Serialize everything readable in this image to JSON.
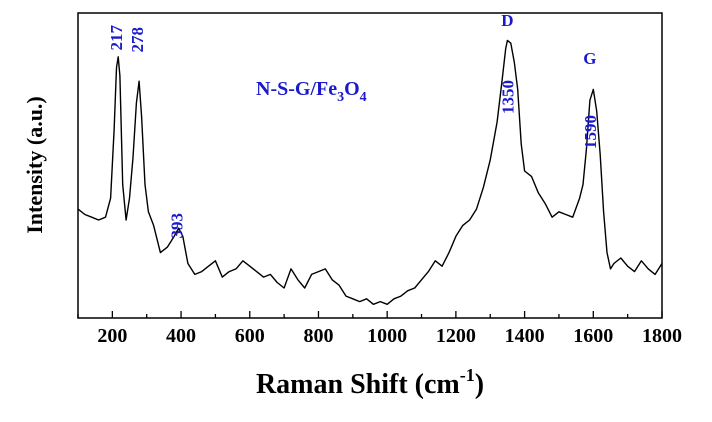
{
  "chart_data": {
    "type": "line",
    "title": "",
    "xlabel": "Raman Shift (cm",
    "xlabel_sup": "-1",
    "xlabel_close": ")",
    "ylabel": "Intensity (a.u.)",
    "xlim": [
      100,
      1800
    ],
    "ylim": [
      0,
      1
    ],
    "x_ticks": [
      200,
      400,
      600,
      800,
      1000,
      1200,
      1400,
      1600,
      1800
    ],
    "x_tick_labels": [
      "200",
      "400",
      "600",
      "800",
      "1000",
      "1200",
      "1400",
      "1600",
      "1800"
    ],
    "y_ticks_shown": false,
    "grid": false,
    "legend": "none",
    "line_color": "#000000",
    "annotation_color": "#1a1acc",
    "sample_label": {
      "parts": [
        "N-S-G/Fe",
        "3",
        "O",
        "4"
      ]
    },
    "peak_labels": [
      {
        "text": "217",
        "x": 217,
        "rotated": true
      },
      {
        "text": "278",
        "x": 278,
        "rotated": true
      },
      {
        "text": "393",
        "x": 393,
        "rotated": true
      },
      {
        "text": "1350",
        "x": 1350,
        "rotated": true
      },
      {
        "text": "1590",
        "x": 1590,
        "rotated": true
      },
      {
        "text": "D",
        "x": 1350,
        "rotated": false
      },
      {
        "text": "G",
        "x": 1590,
        "rotated": false
      }
    ],
    "series": [
      {
        "x": [
          100,
          120,
          140,
          160,
          180,
          195,
          205,
          212,
          217,
          222,
          230,
          240,
          250,
          260,
          270,
          278,
          285,
          295,
          305,
          320,
          340,
          360,
          380,
          393,
          405,
          420,
          440,
          460,
          480,
          500,
          520,
          540,
          560,
          580,
          600,
          620,
          640,
          660,
          680,
          700,
          720,
          740,
          760,
          780,
          800,
          820,
          840,
          860,
          880,
          900,
          920,
          940,
          960,
          980,
          1000,
          1020,
          1040,
          1060,
          1080,
          1100,
          1120,
          1140,
          1160,
          1180,
          1200,
          1220,
          1240,
          1260,
          1280,
          1300,
          1320,
          1335,
          1345,
          1350,
          1360,
          1370,
          1380,
          1390,
          1400,
          1420,
          1440,
          1460,
          1480,
          1500,
          1520,
          1540,
          1560,
          1570,
          1580,
          1590,
          1600,
          1610,
          1620,
          1630,
          1640,
          1650,
          1660,
          1680,
          1700,
          1720,
          1740,
          1760,
          1780,
          1800
        ],
        "y": [
          0.36,
          0.34,
          0.33,
          0.32,
          0.33,
          0.4,
          0.65,
          0.88,
          0.92,
          0.85,
          0.45,
          0.32,
          0.4,
          0.55,
          0.75,
          0.83,
          0.7,
          0.45,
          0.35,
          0.3,
          0.2,
          0.22,
          0.26,
          0.29,
          0.26,
          0.16,
          0.12,
          0.13,
          0.15,
          0.17,
          0.11,
          0.13,
          0.14,
          0.17,
          0.15,
          0.13,
          0.11,
          0.12,
          0.09,
          0.07,
          0.14,
          0.1,
          0.07,
          0.12,
          0.13,
          0.14,
          0.1,
          0.08,
          0.04,
          0.03,
          0.02,
          0.03,
          0.01,
          0.02,
          0.01,
          0.03,
          0.04,
          0.06,
          0.07,
          0.1,
          0.13,
          0.17,
          0.15,
          0.2,
          0.26,
          0.3,
          0.32,
          0.36,
          0.44,
          0.54,
          0.68,
          0.84,
          0.95,
          0.98,
          0.97,
          0.9,
          0.8,
          0.6,
          0.5,
          0.48,
          0.42,
          0.38,
          0.33,
          0.35,
          0.34,
          0.33,
          0.4,
          0.45,
          0.58,
          0.76,
          0.8,
          0.72,
          0.56,
          0.35,
          0.2,
          0.14,
          0.16,
          0.18,
          0.15,
          0.13,
          0.17,
          0.14,
          0.12,
          0.16
        ]
      }
    ]
  }
}
